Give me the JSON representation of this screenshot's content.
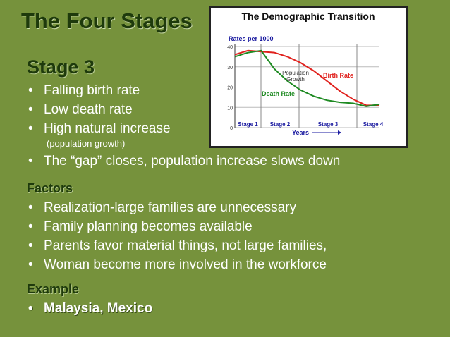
{
  "header": {
    "title": "The Four Stages"
  },
  "stage": {
    "title": "Stage 3",
    "bullets": [
      "Falling birth rate",
      "Low death rate",
      "High natural increase",
      "The “gap” closes, population increase slows down"
    ],
    "note": "(population growth)"
  },
  "factors": {
    "title": "Factors",
    "bullets": [
      "Realization-large families are unnecessary",
      "Family planning becomes available",
      "Parents favor material things, not large families,",
      "Woman become more involved in the workforce"
    ]
  },
  "example": {
    "title": "Example",
    "bullets": [
      "Malaysia, Mexico"
    ]
  },
  "chart_data": {
    "type": "line",
    "title": "The Demographic Transition",
    "ylabel": "Rates per 1000",
    "xlabel": "Years",
    "stages": [
      "Stage 1",
      "Stage 2",
      "Stage 3",
      "Stage 4"
    ],
    "annotation": [
      "Population",
      "Growth"
    ],
    "categories": [
      null,
      null,
      null,
      null,
      null,
      null,
      null,
      null,
      null,
      null,
      null,
      null
    ],
    "series": [
      {
        "name": "Birth Rate",
        "color": "#e0201c",
        "values": [
          36,
          38,
          37.5,
          37,
          35,
          32,
          28,
          23,
          18,
          14,
          11,
          11
        ]
      },
      {
        "name": "Death Rate",
        "color": "#1e8a22",
        "values": [
          35,
          37,
          38,
          29,
          23,
          18.5,
          15.5,
          13.5,
          12.5,
          12,
          10.5,
          11.5
        ]
      }
    ],
    "ylim": [
      0,
      40
    ],
    "yticks": [
      0,
      10,
      20,
      30,
      40
    ],
    "grid": true
  }
}
